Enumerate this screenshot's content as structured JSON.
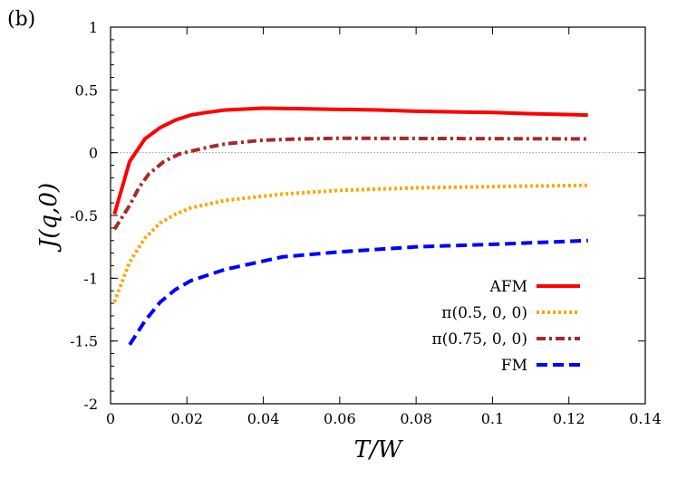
{
  "panel_label": "(b)",
  "chart_data": {
    "type": "line",
    "xlabel": "T/W",
    "ylabel": "J(q,0)",
    "xlim": [
      0,
      0.14
    ],
    "ylim": [
      -2,
      1
    ],
    "xticks": [
      "0",
      "0.02",
      "0.04",
      "0.06",
      "0.08",
      "0.1",
      "0.12",
      "0.14"
    ],
    "xtick_values": [
      0,
      0.02,
      0.04,
      0.06,
      0.08,
      0.1,
      0.12,
      0.14
    ],
    "yticks": [
      "-2",
      "-1.5",
      "-1",
      "-0.5",
      "0",
      "0.5",
      "1"
    ],
    "ytick_values": [
      -2,
      -1.5,
      -1,
      -0.5,
      0,
      0.5,
      1
    ],
    "grid": false,
    "zero_line": true,
    "legend_position": "bottom-right",
    "series": [
      {
        "name": "AFM",
        "color": "#ff0000",
        "style": "solid",
        "x": [
          0.001,
          0.005,
          0.009,
          0.013,
          0.017,
          0.021,
          0.025,
          0.03,
          0.04,
          0.05,
          0.06,
          0.07,
          0.08,
          0.09,
          0.1,
          0.11,
          0.125
        ],
        "y": [
          -0.49,
          -0.07,
          0.11,
          0.2,
          0.26,
          0.3,
          0.32,
          0.34,
          0.355,
          0.35,
          0.345,
          0.34,
          0.33,
          0.325,
          0.32,
          0.31,
          0.3
        ]
      },
      {
        "name": "π(0.5, 0, 0)",
        "color": "#ffa500",
        "style": "dotted",
        "x": [
          0.001,
          0.005,
          0.009,
          0.013,
          0.017,
          0.021,
          0.03,
          0.045,
          0.06,
          0.08,
          0.1,
          0.125
        ],
        "y": [
          -1.19,
          -0.87,
          -0.68,
          -0.56,
          -0.49,
          -0.44,
          -0.38,
          -0.33,
          -0.3,
          -0.28,
          -0.27,
          -0.26
        ]
      },
      {
        "name": "π(0.75, 0, 0)",
        "color": "#a52a2a",
        "style": "dashdot",
        "x": [
          0.001,
          0.005,
          0.0074,
          0.01,
          0.014,
          0.018,
          0.025,
          0.03,
          0.04,
          0.05,
          0.06,
          0.125
        ],
        "y": [
          -0.61,
          -0.42,
          -0.28,
          -0.17,
          -0.07,
          -0.01,
          0.04,
          0.07,
          0.1,
          0.11,
          0.115,
          0.11
        ]
      },
      {
        "name": "FM",
        "color": "#0000ff",
        "style": "dashed",
        "x": [
          0.005,
          0.009,
          0.013,
          0.017,
          0.021,
          0.03,
          0.045,
          0.06,
          0.08,
          0.1,
          0.125
        ],
        "y": [
          -1.53,
          -1.34,
          -1.19,
          -1.09,
          -1.02,
          -0.93,
          -0.83,
          -0.79,
          -0.75,
          -0.73,
          -0.7
        ]
      }
    ]
  }
}
